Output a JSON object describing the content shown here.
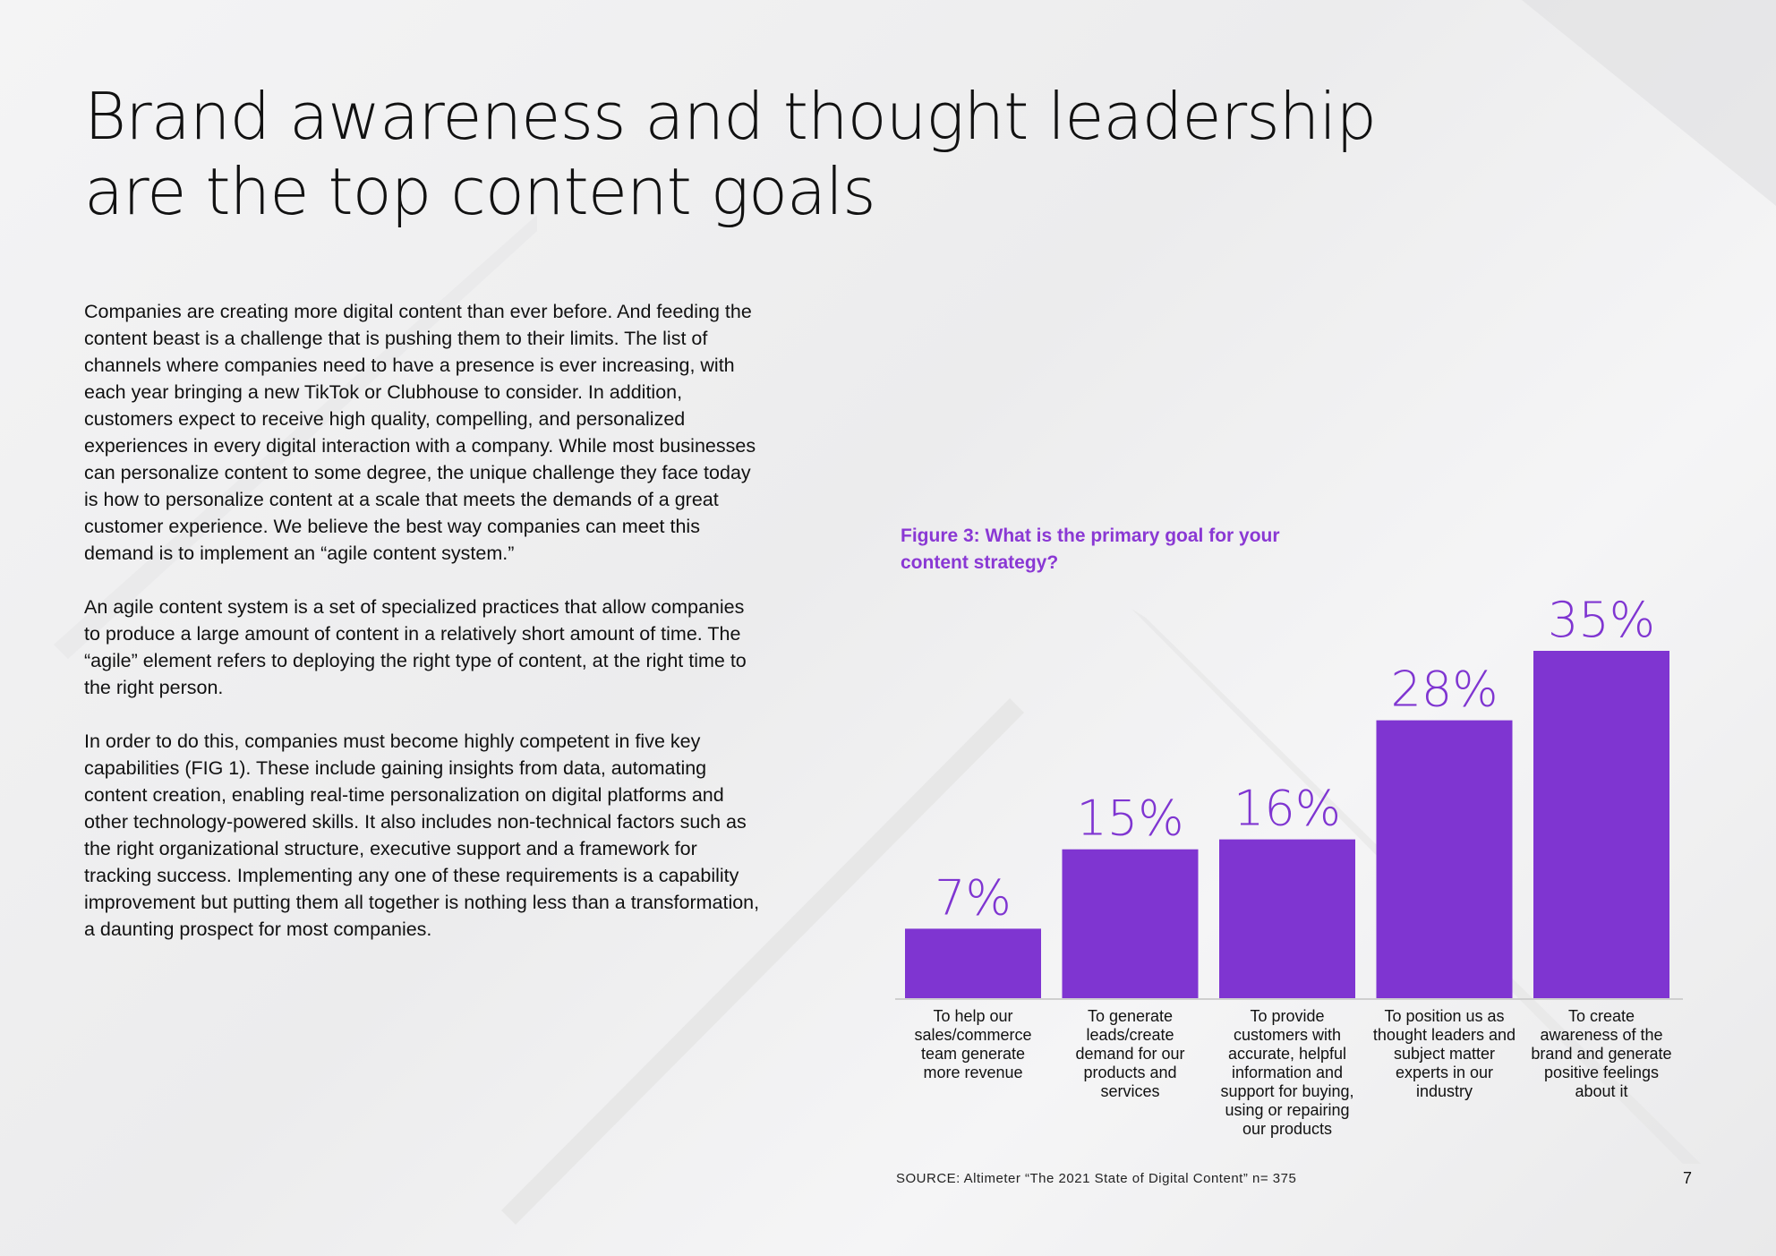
{
  "page": {
    "title_lines": [
      "Brand awareness and thought leadership",
      "are the top content goals"
    ],
    "paragraphs": [
      "Companies are creating more digital content than ever before. And feeding the content beast is a challenge that is pushing them to their limits. The list of channels where companies need to have a presence is ever increasing, with each year bringing a new TikTok or Clubhouse to consider. In addition, customers expect to receive high quality, compelling, and personalized experiences in every digital interaction with a company. While most businesses can personalize content to some degree, the unique challenge they face today is how to personalize content at a scale that meets the demands of a great customer experience. We believe the best way companies can meet this demand is to implement an “agile content system.”",
      "An agile content system is a set of specialized practices that allow companies to produce a large amount of content in a relatively short amount of time. The “agile” element refers to deploying the right type of content, at the right time to the right person.",
      "In order to do this, companies must become highly competent in five key capabilities (FIG 1). These include gaining insights from data, automating content creation, enabling real-time personalization on digital platforms and other technology-powered skills. It also includes non-technical factors such as the right organizational structure, executive support and a framework for tracking success. Implementing any one of these requirements is a capability improvement but putting them all together is nothing less than a transformation, a daunting prospect for most companies."
    ],
    "source": "SOURCE: Altimeter “The 2021 State of Digital Content” n= 375",
    "page_number": "7"
  },
  "chart_data": {
    "type": "bar",
    "title": "Figure 3: What is the primary goal for your content strategy?",
    "xlabel": "",
    "ylabel": "",
    "unit": "%",
    "ylim": [
      0,
      35
    ],
    "grid": false,
    "legend": "none",
    "bar_color": "#7f35d1",
    "categories": [
      [
        "To help our",
        "sales/commerce",
        "team generate",
        "more revenue"
      ],
      [
        "To generate",
        "leads/create",
        "demand for our",
        "products and",
        "services"
      ],
      [
        "To provide",
        "customers with",
        "accurate, helpful",
        "information and",
        "support for buying,",
        "using or repairing",
        "our products"
      ],
      [
        "To position us as",
        "thought leaders and",
        "subject matter",
        "experts in our",
        "industry"
      ],
      [
        "To create",
        "awareness of the",
        "brand and generate",
        "positive feelings",
        "about it"
      ]
    ],
    "values": [
      7,
      15,
      16,
      28,
      35
    ],
    "value_labels": [
      "7%",
      "15%",
      "16%",
      "28%",
      "35%"
    ]
  }
}
